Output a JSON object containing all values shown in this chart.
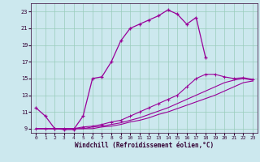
{
  "xlabel": "Windchill (Refroidissement éolien,°C)",
  "bg_color": "#cce8ee",
  "grid_color": "#99ccbb",
  "line_color": "#990099",
  "xlim": [
    -0.5,
    23.5
  ],
  "ylim": [
    8.5,
    24.0
  ],
  "yticks": [
    9,
    11,
    13,
    15,
    17,
    19,
    21,
    23
  ],
  "xticks": [
    0,
    1,
    2,
    3,
    4,
    5,
    6,
    7,
    8,
    9,
    10,
    11,
    12,
    13,
    14,
    15,
    16,
    17,
    18,
    19,
    20,
    21,
    22,
    23
  ],
  "line1_x": [
    0,
    1,
    2,
    3,
    4,
    5,
    6,
    7,
    8,
    9,
    10,
    11,
    12,
    13,
    14,
    15,
    16,
    17,
    18
  ],
  "line1_y": [
    11.5,
    10.5,
    9.0,
    8.9,
    8.9,
    10.5,
    15.0,
    15.2,
    17.0,
    19.5,
    21.0,
    21.5,
    22.0,
    22.5,
    23.2,
    22.7,
    21.5,
    22.3,
    17.5
  ],
  "line2_x": [
    0,
    1,
    2,
    3,
    4,
    5,
    6,
    7,
    8,
    9,
    10,
    11,
    12,
    13,
    14,
    15,
    16,
    17,
    18,
    19,
    20,
    21,
    22,
    23
  ],
  "line2_y": [
    9.0,
    9.0,
    9.0,
    9.0,
    9.0,
    9.2,
    9.3,
    9.5,
    9.8,
    10.0,
    10.5,
    11.0,
    11.5,
    12.0,
    12.5,
    13.0,
    14.0,
    15.0,
    15.5,
    15.5,
    15.2,
    15.0,
    15.1,
    14.9
  ],
  "line3_x": [
    0,
    1,
    2,
    3,
    4,
    5,
    6,
    7,
    8,
    9,
    10,
    11,
    12,
    13,
    14,
    15,
    16,
    17,
    18,
    19,
    20,
    21,
    22,
    23
  ],
  "line3_y": [
    9.0,
    9.0,
    9.0,
    9.0,
    9.0,
    9.0,
    9.2,
    9.3,
    9.5,
    9.7,
    10.0,
    10.3,
    10.7,
    11.1,
    11.5,
    12.0,
    12.5,
    13.0,
    13.5,
    14.0,
    14.5,
    14.8,
    15.0,
    14.8
  ],
  "line4_x": [
    0,
    1,
    2,
    3,
    4,
    5,
    6,
    7,
    8,
    9,
    10,
    11,
    12,
    13,
    14,
    15,
    16,
    17,
    18,
    19,
    20,
    21,
    22,
    23
  ],
  "line4_y": [
    9.0,
    9.0,
    9.0,
    9.0,
    9.0,
    9.0,
    9.0,
    9.2,
    9.3,
    9.5,
    9.8,
    10.0,
    10.3,
    10.7,
    11.0,
    11.4,
    11.8,
    12.2,
    12.6,
    13.0,
    13.5,
    14.0,
    14.5,
    14.7
  ]
}
